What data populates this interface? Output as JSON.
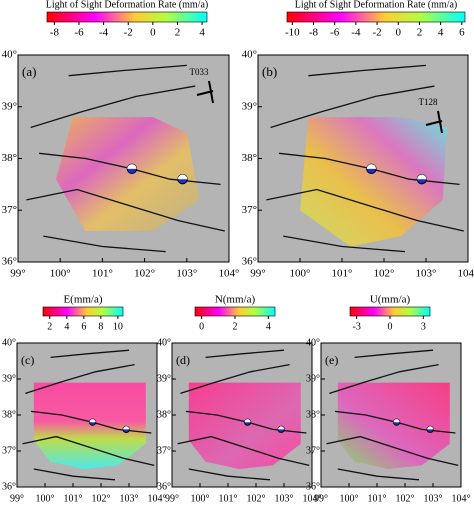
{
  "panels": [
    {
      "label": "(a)",
      "track": "T033",
      "colorbar": {
        "title": "Light of Sight Deformation Rate (mm/a)",
        "lim": [
          -8.6,
          4.4
        ],
        "ticks": [
          -8,
          -6,
          -4,
          -2,
          0,
          2,
          4
        ]
      },
      "xlim": [
        99,
        104
      ],
      "xticks": [
        {
          "value": 99,
          "label": "99°"
        },
        {
          "value": 100,
          "label": "100°"
        },
        {
          "value": 101,
          "label": "101°"
        },
        {
          "value": 102,
          "label": "102°"
        },
        {
          "value": 103,
          "label": "103°"
        },
        {
          "value": 104,
          "label": "104°"
        }
      ],
      "ylim": [
        36,
        40
      ],
      "yticks": [
        {
          "value": 36,
          "label": "36°"
        },
        {
          "value": 37,
          "label": "37°"
        },
        {
          "value": 38,
          "label": "38°"
        },
        {
          "value": 39,
          "label": "39°"
        },
        {
          "value": 40,
          "label": "40°"
        }
      ]
    },
    {
      "label": "(b)",
      "track": "T128",
      "colorbar": {
        "title": "Light of Sight Deformation Rate (mm/a)",
        "lim": [
          -10.5,
          6.3
        ],
        "ticks": [
          -10,
          -8,
          -6,
          -4,
          -2,
          0,
          2,
          4,
          6
        ]
      },
      "xlim": [
        99,
        104
      ],
      "xticks": [
        {
          "value": 99,
          "label": "99°"
        },
        {
          "value": 100,
          "label": "100°"
        },
        {
          "value": 101,
          "label": "101°"
        },
        {
          "value": 102,
          "label": "102°"
        },
        {
          "value": 103,
          "label": "103°"
        },
        {
          "value": 104,
          "label": "104°"
        }
      ],
      "ylim": [
        36,
        40
      ],
      "yticks": [
        {
          "value": 36,
          "label": "36°"
        },
        {
          "value": 37,
          "label": "37°"
        },
        {
          "value": 38,
          "label": "38°"
        },
        {
          "value": 39,
          "label": "39°"
        },
        {
          "value": 40,
          "label": "40°"
        }
      ]
    },
    {
      "label": "(c)",
      "colorbar": {
        "title": "E(mm/a)",
        "lim": [
          1.2,
          10.6
        ],
        "ticks": [
          2,
          4,
          6,
          8,
          10
        ]
      },
      "xlim": [
        99,
        104
      ],
      "xticks": [
        {
          "value": 99,
          "label": "99°"
        },
        {
          "value": 100,
          "label": "100°"
        },
        {
          "value": 101,
          "label": "101°"
        },
        {
          "value": 102,
          "label": "102°"
        },
        {
          "value": 103,
          "label": "103°"
        },
        {
          "value": 104,
          "label": "104°"
        }
      ],
      "ylim": [
        36,
        40
      ],
      "yticks": [
        {
          "value": 36,
          "label": "36°"
        },
        {
          "value": 37,
          "label": "37°"
        },
        {
          "value": 38,
          "label": "38°"
        },
        {
          "value": 39,
          "label": "39°"
        },
        {
          "value": 40,
          "label": "40°"
        }
      ]
    },
    {
      "label": "(d)",
      "colorbar": {
        "title": "N(mm/a)",
        "lim": [
          -0.4,
          4.4
        ],
        "ticks": [
          0,
          2,
          4
        ]
      },
      "xlim": [
        99,
        104
      ],
      "xticks": [
        {
          "value": 99,
          "label": "99°"
        },
        {
          "value": 100,
          "label": "100°"
        },
        {
          "value": 101,
          "label": "101°"
        },
        {
          "value": 102,
          "label": "102°"
        },
        {
          "value": 103,
          "label": "103°"
        },
        {
          "value": 104,
          "label": "104°"
        }
      ],
      "ylim": [
        36,
        40
      ],
      "yticks": [
        {
          "value": 36,
          "label": "36°"
        },
        {
          "value": 37,
          "label": "37°"
        },
        {
          "value": 38,
          "label": "38°"
        },
        {
          "value": 39,
          "label": "39°"
        },
        {
          "value": 40,
          "label": "40°"
        }
      ]
    },
    {
      "label": "(e)",
      "colorbar": {
        "title": "U(mm/a)",
        "lim": [
          -3.6,
          3.6
        ],
        "ticks": [
          -3,
          0,
          3
        ]
      },
      "xlim": [
        99,
        104
      ],
      "xticks": [
        {
          "value": 99,
          "label": "99°"
        },
        {
          "value": 100,
          "label": "100°"
        },
        {
          "value": 101,
          "label": "101°"
        },
        {
          "value": 102,
          "label": "102°"
        },
        {
          "value": 103,
          "label": "103°"
        },
        {
          "value": 104,
          "label": "104°"
        }
      ],
      "ylim": [
        36,
        40
      ],
      "yticks": [
        {
          "value": 36,
          "label": "36°"
        },
        {
          "value": 37,
          "label": "37°"
        },
        {
          "value": 38,
          "label": "38°"
        },
        {
          "value": 39,
          "label": "39°"
        },
        {
          "value": 40,
          "label": "40°"
        }
      ]
    }
  ]
}
